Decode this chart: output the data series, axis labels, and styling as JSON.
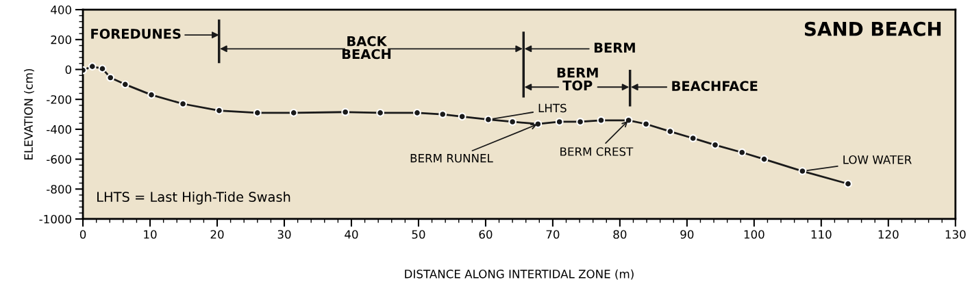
{
  "chart_data": {
    "type": "line",
    "title": "SAND BEACH",
    "xlabel": "DISTANCE ALONG INTERTIDAL ZONE (m)",
    "ylabel": "ELEVATION (cm)",
    "x": [
      0,
      1.4,
      2.9,
      4.1,
      6.3,
      10.2,
      14.9,
      20.3,
      26.0,
      31.4,
      39.1,
      44.3,
      49.8,
      53.6,
      56.5,
      60.4,
      64.0,
      67.8,
      71.0,
      74.1,
      77.2,
      81.3,
      83.9,
      87.5,
      90.9,
      94.2,
      98.2,
      101.5,
      107.2,
      114.0
    ],
    "series": [
      {
        "color": "#1a1a1a",
        "values": [
          -5,
          20,
          5,
          -55,
          -100,
          -170,
          -230,
          -275,
          -290,
          -290,
          -285,
          -290,
          -290,
          -300,
          -315,
          -335,
          -350,
          -365,
          -350,
          -350,
          -340,
          -340,
          -365,
          -415,
          -460,
          -505,
          -555,
          -600,
          -680,
          -765
        ]
      }
    ],
    "marker": "circle",
    "xlim": [
      0,
      130
    ],
    "xticks": [
      0,
      10,
      20,
      30,
      40,
      50,
      60,
      70,
      80,
      90,
      100,
      110,
      120,
      130
    ],
    "ylim": [
      -1000,
      400
    ],
    "yticks": [
      -1000,
      -800,
      -600,
      -400,
      -200,
      0,
      200,
      400
    ],
    "grid": false,
    "legend": false,
    "annotations": [
      "FOREDUNES",
      "BACK\nBEACH",
      "BERM",
      "BERM\nTOP",
      "BEACHFACE",
      {
        "text": "LHTS",
        "x": 60.4,
        "y": -335
      },
      {
        "text": "BERM RUNNEL",
        "x": 67.8,
        "y": -365
      },
      {
        "text": "BERM CREST",
        "x": 81.3,
        "y": -340
      },
      {
        "text": "LOW WATER",
        "x": 107.2,
        "y": -680
      },
      "LHTS = Last High-Tide Swash"
    ]
  }
}
